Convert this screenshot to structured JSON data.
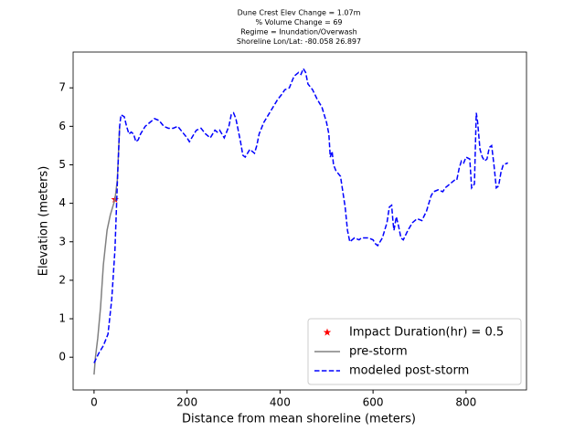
{
  "chart_data": {
    "type": "line",
    "title_lines": [
      "Dune Crest Elev Change = 1.07m",
      "% Volume Change = 69",
      "Regime = Inundation/Overwash",
      "Shoreline Lon/Lat: -80.058 26.897"
    ],
    "xlabel": "Distance from mean shoreline (meters)",
    "ylabel": "Elevation (meters)",
    "xlim": [
      -45,
      930
    ],
    "ylim": [
      -0.85,
      7.93
    ],
    "xticks": [
      0,
      200,
      400,
      600,
      800
    ],
    "yticks": [
      0,
      1,
      2,
      3,
      4,
      5,
      6,
      7
    ],
    "legend": "lower right",
    "series": [
      {
        "name": "Impact Duration(hr) = 0.5",
        "color": "#ff0000",
        "marker": "star",
        "x": [
          45
        ],
        "values": [
          4.1
        ]
      },
      {
        "name": "pre-storm",
        "color": "#808080",
        "style": "solid",
        "x": [
          0,
          3,
          8,
          14,
          20,
          28,
          35,
          45,
          50,
          55
        ],
        "values": [
          -0.45,
          0,
          0.5,
          1.3,
          2.4,
          3.3,
          3.7,
          4.1,
          4.6,
          6.0
        ]
      },
      {
        "name": "modeled post-storm",
        "color": "#0000ff",
        "style": "dashed",
        "x": [
          0,
          10,
          20,
          30,
          38,
          45,
          50,
          55,
          58,
          65,
          70,
          75,
          80,
          85,
          90,
          95,
          100,
          110,
          120,
          130,
          140,
          150,
          160,
          170,
          180,
          190,
          200,
          205,
          210,
          220,
          230,
          240,
          250,
          260,
          265,
          270,
          280,
          290,
          295,
          300,
          305,
          310,
          315,
          320,
          325,
          330,
          335,
          340,
          345,
          350,
          355,
          365,
          375,
          385,
          395,
          405,
          410,
          420,
          430,
          440,
          445,
          450,
          455,
          460,
          470,
          480,
          490,
          500,
          505,
          508,
          512,
          515,
          520,
          530,
          535,
          540,
          545,
          550,
          560,
          570,
          575,
          590,
          600,
          605,
          610,
          620,
          630,
          635,
          640,
          643,
          645,
          650,
          655,
          660,
          665,
          675,
          685,
          695,
          705,
          715,
          720,
          725,
          730,
          740,
          750,
          755,
          760,
          770,
          775,
          780,
          785,
          790,
          795,
          800,
          808,
          812,
          818,
          822,
          825,
          830,
          835,
          840,
          845,
          850,
          855,
          860,
          865,
          870,
          875,
          880,
          890
        ],
        "values": [
          -0.15,
          0.1,
          0.3,
          0.6,
          1.5,
          2.8,
          4.5,
          6.0,
          6.3,
          6.25,
          6.0,
          5.8,
          5.85,
          5.8,
          5.6,
          5.65,
          5.8,
          6.0,
          6.1,
          6.2,
          6.15,
          6.0,
          5.95,
          5.95,
          6.0,
          5.85,
          5.7,
          5.6,
          5.7,
          5.9,
          5.95,
          5.8,
          5.7,
          5.9,
          5.85,
          5.9,
          5.7,
          6.0,
          6.3,
          6.35,
          6.2,
          5.9,
          5.6,
          5.25,
          5.2,
          5.3,
          5.4,
          5.35,
          5.3,
          5.5,
          5.8,
          6.1,
          6.3,
          6.5,
          6.7,
          6.85,
          6.95,
          7.0,
          7.3,
          7.4,
          7.35,
          7.5,
          7.4,
          7.1,
          6.95,
          6.7,
          6.5,
          6.1,
          5.8,
          5.2,
          5.35,
          5.0,
          4.85,
          4.7,
          4.3,
          3.9,
          3.3,
          3.0,
          3.1,
          3.05,
          3.1,
          3.1,
          3.05,
          2.95,
          2.9,
          3.1,
          3.5,
          3.9,
          3.95,
          3.5,
          3.3,
          3.65,
          3.4,
          3.1,
          3.05,
          3.3,
          3.5,
          3.6,
          3.55,
          3.8,
          4.0,
          4.2,
          4.3,
          4.35,
          4.3,
          4.4,
          4.45,
          4.55,
          4.6,
          4.6,
          4.9,
          5.1,
          5.05,
          5.2,
          5.15,
          4.4,
          4.5,
          6.35,
          6.1,
          5.4,
          5.2,
          5.1,
          5.15,
          5.45,
          5.5,
          5.0,
          4.4,
          4.45,
          4.8,
          5.0,
          5.05
        ]
      }
    ]
  }
}
